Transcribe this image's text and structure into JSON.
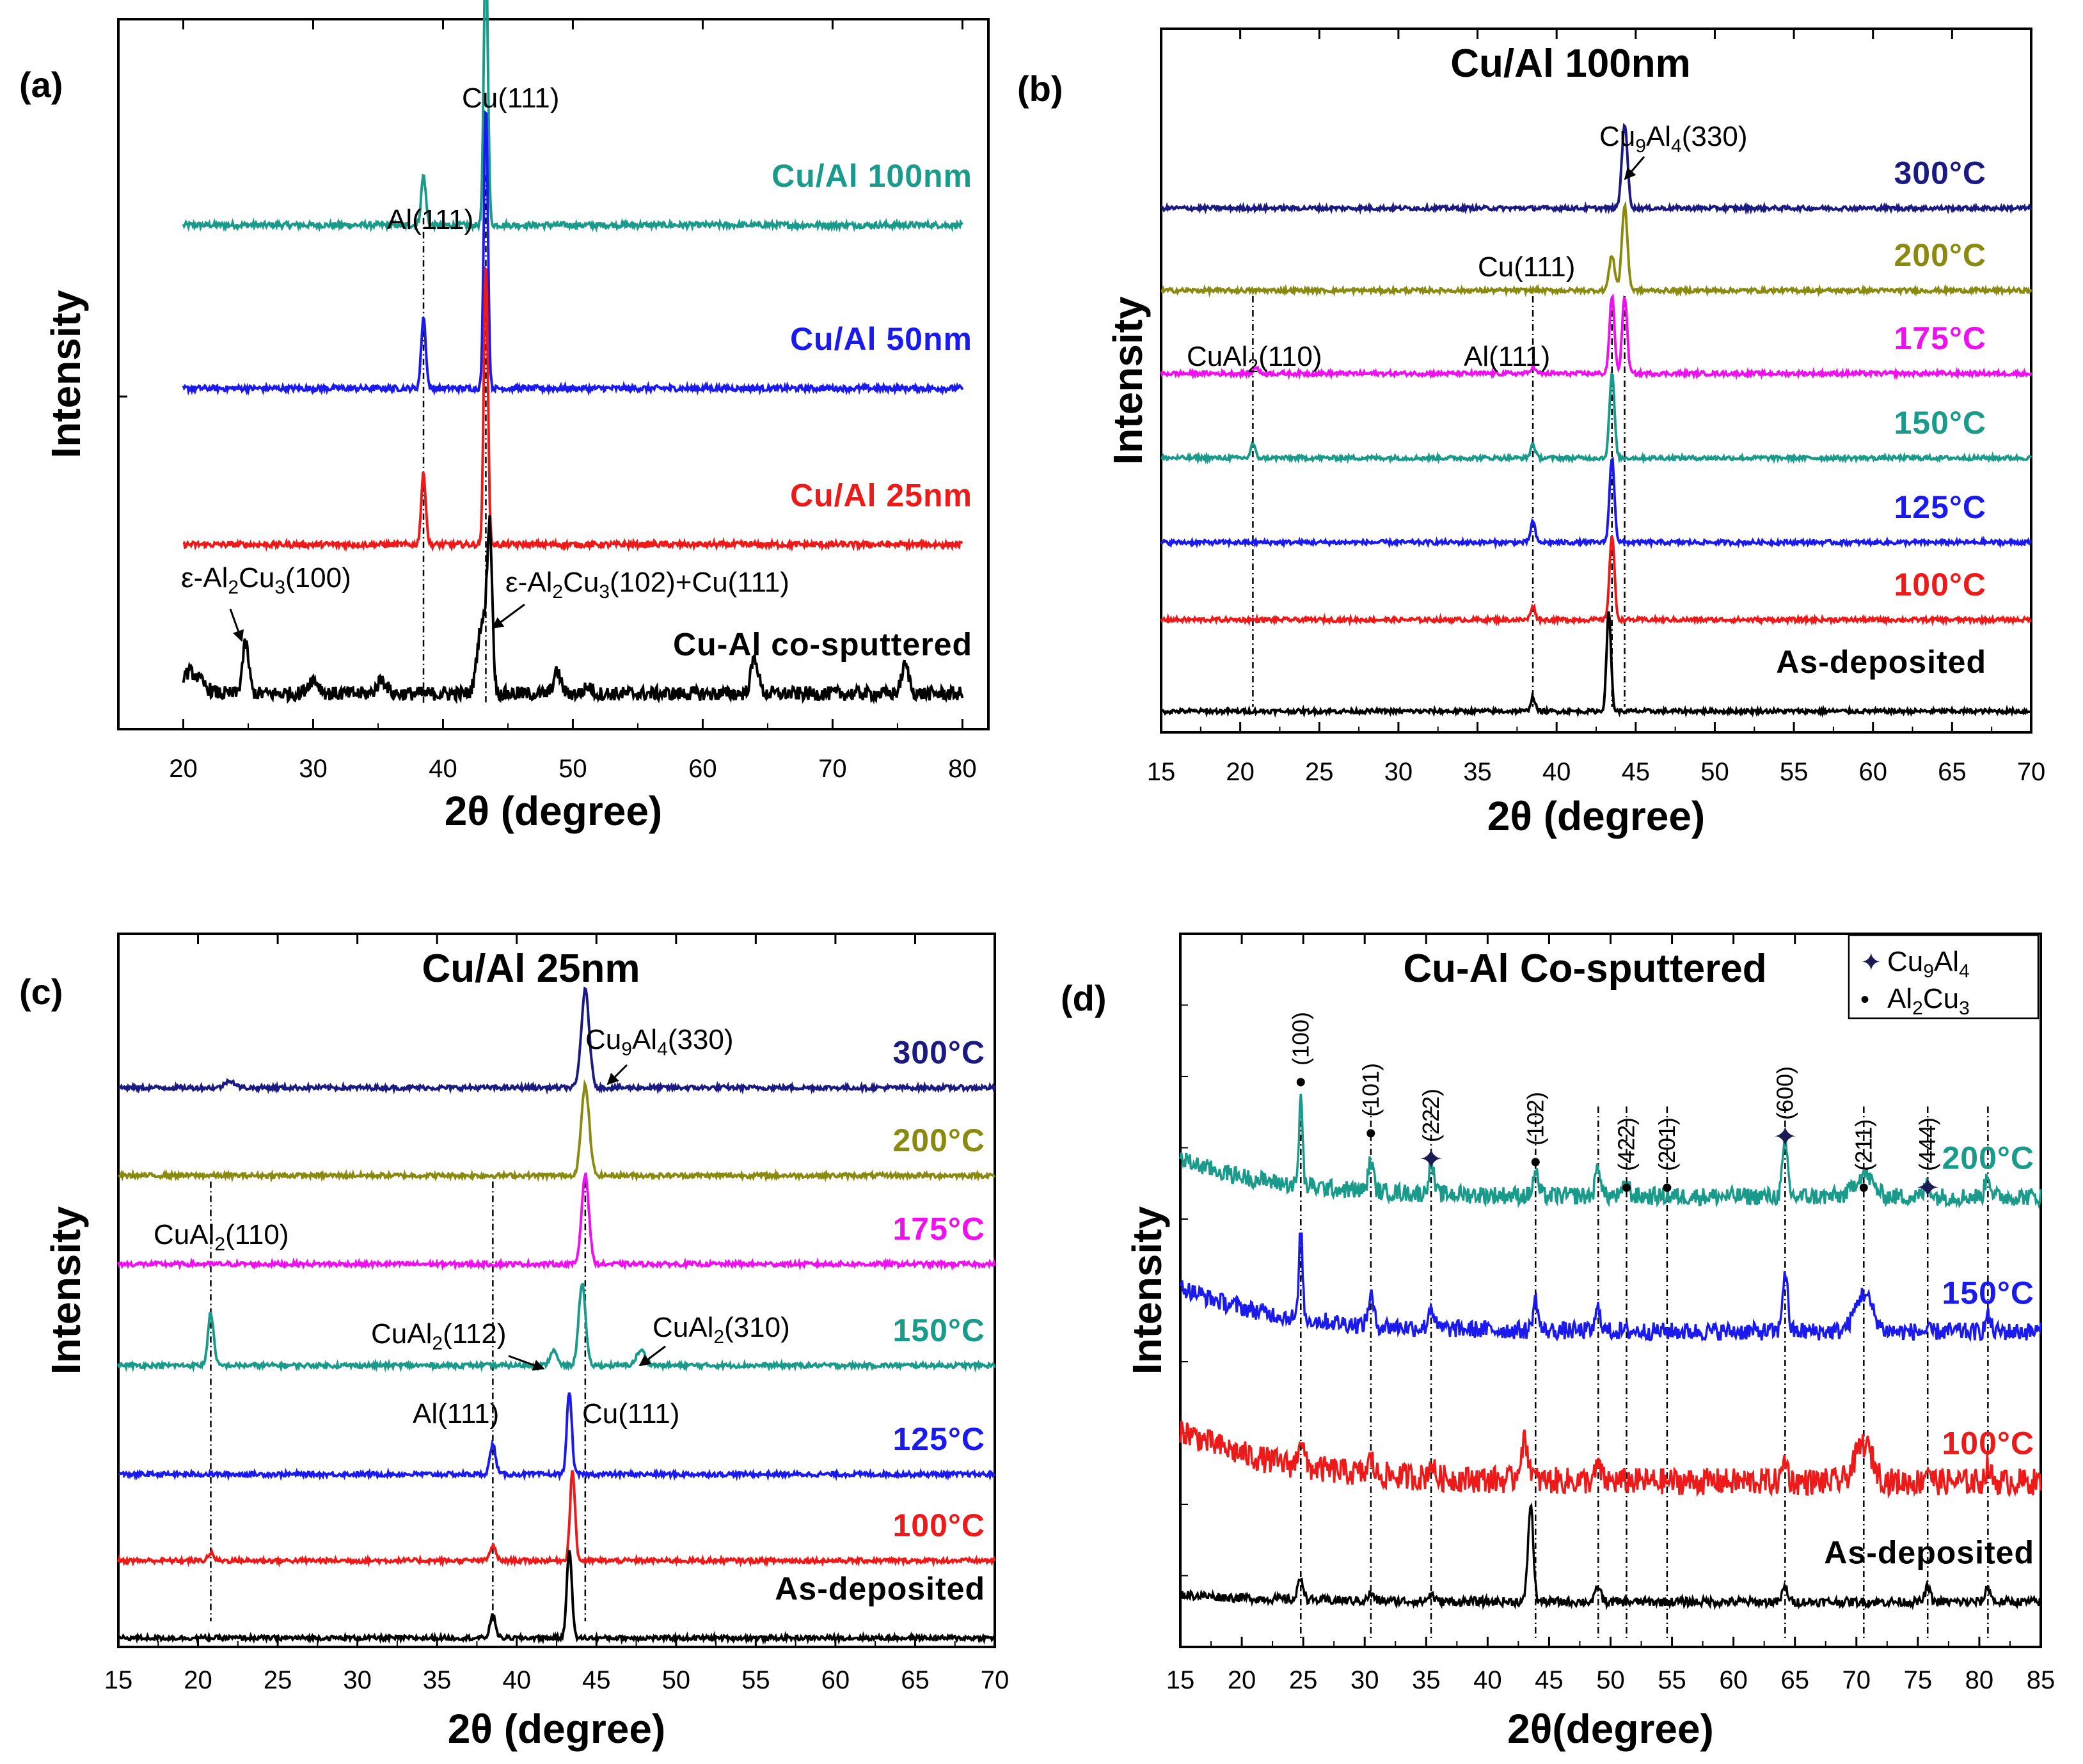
{
  "figure": {
    "panel_labels": [
      "(a)",
      "(b)",
      "(c)",
      "(d)"
    ],
    "ylabel": "Intensity",
    "xlabel": "2θ (degree)"
  },
  "chart_data": [
    {
      "panel": "(a)",
      "type": "line",
      "title": "",
      "xlabel": "2θ (degree)",
      "ylabel": "Intensity",
      "xlim": [
        15,
        82
      ],
      "xticks": [
        20,
        30,
        40,
        50,
        60,
        70,
        80
      ],
      "grid": false,
      "series": [
        {
          "name": "Cu/Al 100nm",
          "color": "#1a9a8a",
          "x_range": [
            20,
            80
          ],
          "base": 0.71,
          "noise": 0.004,
          "peaks": [
            {
              "x": 38.5,
              "h": 0.07,
              "w": 0.25
            },
            {
              "x": 43.3,
              "h": 0.4,
              "w": 0.22
            }
          ]
        },
        {
          "name": "Cu/Al 50nm",
          "color": "#1a1aee",
          "x_range": [
            20,
            80
          ],
          "base": 0.48,
          "noise": 0.004,
          "peaks": [
            {
              "x": 38.5,
              "h": 0.1,
              "w": 0.25
            },
            {
              "x": 43.3,
              "h": 0.4,
              "w": 0.22
            }
          ]
        },
        {
          "name": "Cu/Al 25nm",
          "color": "#ee1a1a",
          "x_range": [
            20,
            80
          ],
          "base": 0.26,
          "noise": 0.004,
          "peaks": [
            {
              "x": 38.5,
              "h": 0.1,
              "w": 0.25
            },
            {
              "x": 43.3,
              "h": 0.4,
              "w": 0.22
            }
          ]
        },
        {
          "name": "Cu-Al co-sputtered",
          "color": "#000000",
          "x_range": [
            20,
            80
          ],
          "base": 0.05,
          "noise": 0.01,
          "peaks": [
            {
              "x": 20.5,
              "h": 0.03,
              "w": 1.2
            },
            {
              "x": 24.8,
              "h": 0.07,
              "w": 0.35
            },
            {
              "x": 30.0,
              "h": 0.02,
              "w": 0.6
            },
            {
              "x": 35.3,
              "h": 0.02,
              "w": 0.5
            },
            {
              "x": 43.0,
              "h": 0.1,
              "w": 0.5
            },
            {
              "x": 43.6,
              "h": 0.22,
              "w": 0.28
            },
            {
              "x": 48.8,
              "h": 0.03,
              "w": 0.4
            },
            {
              "x": 51.2,
              "h": 0.01,
              "w": 0.4
            },
            {
              "x": 64.0,
              "h": 0.05,
              "w": 0.4
            },
            {
              "x": 75.6,
              "h": 0.04,
              "w": 0.4
            }
          ]
        }
      ],
      "dashed_lines": [
        38.5,
        43.3
      ],
      "annotations": [
        {
          "text": "Cu(111)",
          "x": 43.3
        },
        {
          "text": "Al(111)",
          "x": 38.2
        },
        {
          "text": "ε-Al",
          "sub1": "2",
          "mid": "Cu",
          "sub2": "3",
          "end": "(100)",
          "x": 24.8
        },
        {
          "text": "ε-Al",
          "sub1": "2",
          "mid": "Cu",
          "sub2": "3",
          "end": "(102)+Cu(111)",
          "x": 43.6
        }
      ]
    },
    {
      "panel": "(b)",
      "type": "line",
      "title": "Cu/Al 100nm",
      "xlabel": "2θ (degree)",
      "ylabel": "Intensity",
      "xlim": [
        15,
        70
      ],
      "xticks": [
        15,
        20,
        25,
        30,
        35,
        40,
        45,
        50,
        55,
        60,
        65,
        70
      ],
      "grid": false,
      "series": [
        {
          "name": "300°C",
          "color": "#1a1a80",
          "base": 0.745,
          "noise": 0.003,
          "peaks": [
            {
              "x": 44.3,
              "h": 0.12,
              "w": 0.25
            }
          ]
        },
        {
          "name": "200°C",
          "color": "#8a8a10",
          "base": 0.628,
          "noise": 0.003,
          "peaks": [
            {
              "x": 43.5,
              "h": 0.05,
              "w": 0.25
            },
            {
              "x": 44.3,
              "h": 0.12,
              "w": 0.25
            }
          ]
        },
        {
          "name": "175°C",
          "color": "#ee10ee",
          "base": 0.51,
          "noise": 0.003,
          "peaks": [
            {
              "x": 21.0,
              "h": 0.01,
              "w": 0.2
            },
            {
              "x": 38.5,
              "h": 0.01,
              "w": 0.2
            },
            {
              "x": 43.5,
              "h": 0.11,
              "w": 0.22
            },
            {
              "x": 44.3,
              "h": 0.11,
              "w": 0.22
            }
          ]
        },
        {
          "name": "150°C",
          "color": "#1a9a8a",
          "base": 0.39,
          "noise": 0.003,
          "peaks": [
            {
              "x": 20.8,
              "h": 0.02,
              "w": 0.2
            },
            {
              "x": 38.5,
              "h": 0.02,
              "w": 0.2
            },
            {
              "x": 43.5,
              "h": 0.12,
              "w": 0.22
            }
          ]
        },
        {
          "name": "125°C",
          "color": "#1a1aee",
          "base": 0.27,
          "noise": 0.003,
          "peaks": [
            {
              "x": 38.5,
              "h": 0.03,
              "w": 0.2
            },
            {
              "x": 43.5,
              "h": 0.12,
              "w": 0.22
            }
          ]
        },
        {
          "name": "100°C",
          "color": "#ee1a1a",
          "base": 0.16,
          "noise": 0.003,
          "peaks": [
            {
              "x": 38.5,
              "h": 0.02,
              "w": 0.2
            },
            {
              "x": 43.5,
              "h": 0.12,
              "w": 0.22
            }
          ]
        },
        {
          "name": "As-deposited",
          "color": "#000000",
          "base": 0.03,
          "noise": 0.003,
          "peaks": [
            {
              "x": 38.5,
              "h": 0.02,
              "w": 0.2
            },
            {
              "x": 43.3,
              "h": 0.14,
              "w": 0.2
            }
          ]
        }
      ],
      "dashed_lines": [
        20.8,
        38.5,
        43.5,
        44.3
      ],
      "annotations": [
        {
          "text": "Cu",
          "sub1": "9",
          "mid": "Al",
          "sub2": "4",
          "end": "(330)",
          "x": 44.3
        },
        {
          "text": "Cu(111)",
          "x": 43.5
        },
        {
          "text": "CuAl",
          "sub1": "2",
          "end": "(110)",
          "x": 20.8
        },
        {
          "text": "Al(111)",
          "x": 38.5
        }
      ]
    },
    {
      "panel": "(c)",
      "type": "line",
      "title": "Cu/Al 25nm",
      "xlabel": "2θ (degree)",
      "ylabel": "Intensity",
      "xlim": [
        15,
        70
      ],
      "xticks": [
        15,
        20,
        25,
        30,
        35,
        40,
        45,
        50,
        55,
        60,
        65,
        70
      ],
      "grid": false,
      "series": [
        {
          "name": "300°C",
          "color": "#1a1a80",
          "base": 0.745,
          "noise": 0.003,
          "peaks": [
            {
              "x": 22.0,
              "h": 0.01,
              "w": 0.4
            },
            {
              "x": 44.3,
              "h": 0.13,
              "w": 0.35
            }
          ]
        },
        {
          "name": "200°C",
          "color": "#8a8a10",
          "base": 0.628,
          "noise": 0.003,
          "peaks": [
            {
              "x": 44.3,
              "h": 0.12,
              "w": 0.35
            }
          ]
        },
        {
          "name": "175°C",
          "color": "#ee10ee",
          "base": 0.51,
          "noise": 0.003,
          "peaks": [
            {
              "x": 44.3,
              "h": 0.12,
              "w": 0.32
            }
          ]
        },
        {
          "name": "150°C",
          "color": "#1a9a8a",
          "base": 0.375,
          "noise": 0.003,
          "peaks": [
            {
              "x": 20.8,
              "h": 0.07,
              "w": 0.25
            },
            {
              "x": 42.3,
              "h": 0.02,
              "w": 0.3
            },
            {
              "x": 44.1,
              "h": 0.11,
              "w": 0.3
            },
            {
              "x": 47.8,
              "h": 0.02,
              "w": 0.4
            }
          ]
        },
        {
          "name": "125°C",
          "color": "#1a1aee",
          "base": 0.23,
          "noise": 0.003,
          "peaks": [
            {
              "x": 38.5,
              "h": 0.04,
              "w": 0.25
            },
            {
              "x": 43.3,
              "h": 0.11,
              "w": 0.22
            }
          ]
        },
        {
          "name": "100°C",
          "color": "#ee1a1a",
          "base": 0.115,
          "noise": 0.003,
          "peaks": [
            {
              "x": 20.8,
              "h": 0.01,
              "w": 0.25
            },
            {
              "x": 38.5,
              "h": 0.02,
              "w": 0.25
            },
            {
              "x": 43.5,
              "h": 0.12,
              "w": 0.22
            }
          ]
        },
        {
          "name": "As-deposited",
          "color": "#000000",
          "base": 0.012,
          "noise": 0.003,
          "peaks": [
            {
              "x": 38.5,
              "h": 0.03,
              "w": 0.25
            },
            {
              "x": 43.3,
              "h": 0.12,
              "w": 0.22
            }
          ]
        }
      ],
      "dashed_lines": [
        20.8,
        38.5,
        44.3
      ],
      "annotations": [
        {
          "text": "Cu",
          "sub1": "9",
          "mid": "Al",
          "sub2": "4",
          "end": "(330)",
          "x": 44.3
        },
        {
          "text": "CuAl",
          "sub1": "2",
          "end": "(110)",
          "x": 20.8
        },
        {
          "text": "CuAl",
          "sub1": "2",
          "end": "(112)",
          "x": 42.3
        },
        {
          "text": "CuAl",
          "sub1": "2",
          "end": "(310)",
          "x": 47.8
        },
        {
          "text": "Al(111)",
          "x": 38.5
        },
        {
          "text": "Cu(111)",
          "x": 43.3
        }
      ]
    },
    {
      "panel": "(d)",
      "type": "line",
      "title": "Cu-Al Co-sputtered",
      "xlabel": "2θ(degree)",
      "ylabel": "Intensity",
      "xlim": [
        15,
        85
      ],
      "xticks": [
        15,
        20,
        25,
        30,
        35,
        40,
        45,
        50,
        55,
        60,
        65,
        70,
        75,
        80,
        85
      ],
      "grid": false,
      "legend": {
        "position": "top-right",
        "entries": [
          {
            "symbol": "✦",
            "text": "Cu",
            "sub1": "9",
            "mid": "Al",
            "sub2": "4"
          },
          {
            "symbol": "•",
            "text": "Al",
            "sub1": "2",
            "mid": "Cu",
            "sub2": "3"
          }
        ]
      },
      "series": [
        {
          "name": "200°C",
          "color": "#1a9a8a",
          "base": 0.6,
          "noise": 0.012,
          "slope": 0.05,
          "peaks": [
            {
              "x": 24.8,
              "h": 0.12,
              "w": 0.2
            },
            {
              "x": 30.5,
              "h": 0.04,
              "w": 0.3
            },
            {
              "x": 35.4,
              "h": 0.04,
              "w": 0.3
            },
            {
              "x": 43.9,
              "h": 0.03,
              "w": 0.3
            },
            {
              "x": 49.0,
              "h": 0.04,
              "w": 0.3
            },
            {
              "x": 51.3,
              "h": 0.02,
              "w": 0.3
            },
            {
              "x": 64.2,
              "h": 0.07,
              "w": 0.3
            },
            {
              "x": 70.6,
              "h": 0.03,
              "w": 1.0
            },
            {
              "x": 75.8,
              "h": 0.02,
              "w": 0.3
            },
            {
              "x": 80.7,
              "h": 0.03,
              "w": 0.3
            }
          ]
        },
        {
          "name": "150°C",
          "color": "#1a1aee",
          "base": 0.42,
          "noise": 0.012,
          "slope": 0.06,
          "peaks": [
            {
              "x": 24.8,
              "h": 0.12,
              "w": 0.2
            },
            {
              "x": 30.5,
              "h": 0.04,
              "w": 0.3
            },
            {
              "x": 35.4,
              "h": 0.03,
              "w": 0.3
            },
            {
              "x": 43.9,
              "h": 0.04,
              "w": 0.3
            },
            {
              "x": 49.0,
              "h": 0.03,
              "w": 0.3
            },
            {
              "x": 64.2,
              "h": 0.08,
              "w": 0.3
            },
            {
              "x": 70.6,
              "h": 0.05,
              "w": 1.0
            },
            {
              "x": 80.7,
              "h": 0.02,
              "w": 0.3
            }
          ]
        },
        {
          "name": "100°C",
          "color": "#ee1a1a",
          "base": 0.22,
          "noise": 0.018,
          "slope": 0.07,
          "peaks": [
            {
              "x": 24.8,
              "h": 0.04,
              "w": 0.3
            },
            {
              "x": 30.5,
              "h": 0.02,
              "w": 0.3
            },
            {
              "x": 35.4,
              "h": 0.02,
              "w": 0.3
            },
            {
              "x": 43.0,
              "h": 0.05,
              "w": 0.5
            },
            {
              "x": 49.0,
              "h": 0.02,
              "w": 0.3
            },
            {
              "x": 64.2,
              "h": 0.03,
              "w": 0.3
            },
            {
              "x": 70.6,
              "h": 0.05,
              "w": 1.0
            },
            {
              "x": 75.8,
              "h": 0.02,
              "w": 0.3
            },
            {
              "x": 80.7,
              "h": 0.02,
              "w": 0.3
            }
          ]
        },
        {
          "name": "As-deposited",
          "color": "#000000",
          "base": 0.06,
          "noise": 0.006,
          "slope": 0.01,
          "peaks": [
            {
              "x": 24.8,
              "h": 0.03,
              "w": 0.3
            },
            {
              "x": 30.5,
              "h": 0.01,
              "w": 0.3
            },
            {
              "x": 35.4,
              "h": 0.01,
              "w": 0.3
            },
            {
              "x": 43.5,
              "h": 0.13,
              "w": 0.3
            },
            {
              "x": 49.0,
              "h": 0.02,
              "w": 0.3
            },
            {
              "x": 64.2,
              "h": 0.02,
              "w": 0.3
            },
            {
              "x": 75.8,
              "h": 0.02,
              "w": 0.3
            },
            {
              "x": 80.7,
              "h": 0.02,
              "w": 0.3
            }
          ]
        }
      ],
      "dashed_lines": [
        24.8,
        30.5,
        35.4,
        43.9,
        49.0,
        51.3,
        54.6,
        64.2,
        70.6,
        75.8,
        80.7
      ],
      "annotations": [
        {
          "text": "(100)",
          "x": 24.8,
          "marker": "•"
        },
        {
          "text": "(101)",
          "x": 30.5,
          "marker": "•"
        },
        {
          "text": "(222)",
          "x": 35.4,
          "marker": "✦"
        },
        {
          "text": "(102)",
          "x": 43.9,
          "marker": "•"
        },
        {
          "text": "(422)",
          "x": 51.3,
          "marker": "•"
        },
        {
          "text": "(201)",
          "x": 54.6,
          "marker": "•"
        },
        {
          "text": "(600)",
          "x": 64.2,
          "marker": "✦"
        },
        {
          "text": "(211)",
          "x": 70.6,
          "marker": "•"
        },
        {
          "text": "(444)",
          "x": 75.8,
          "marker": "✦"
        }
      ]
    }
  ]
}
